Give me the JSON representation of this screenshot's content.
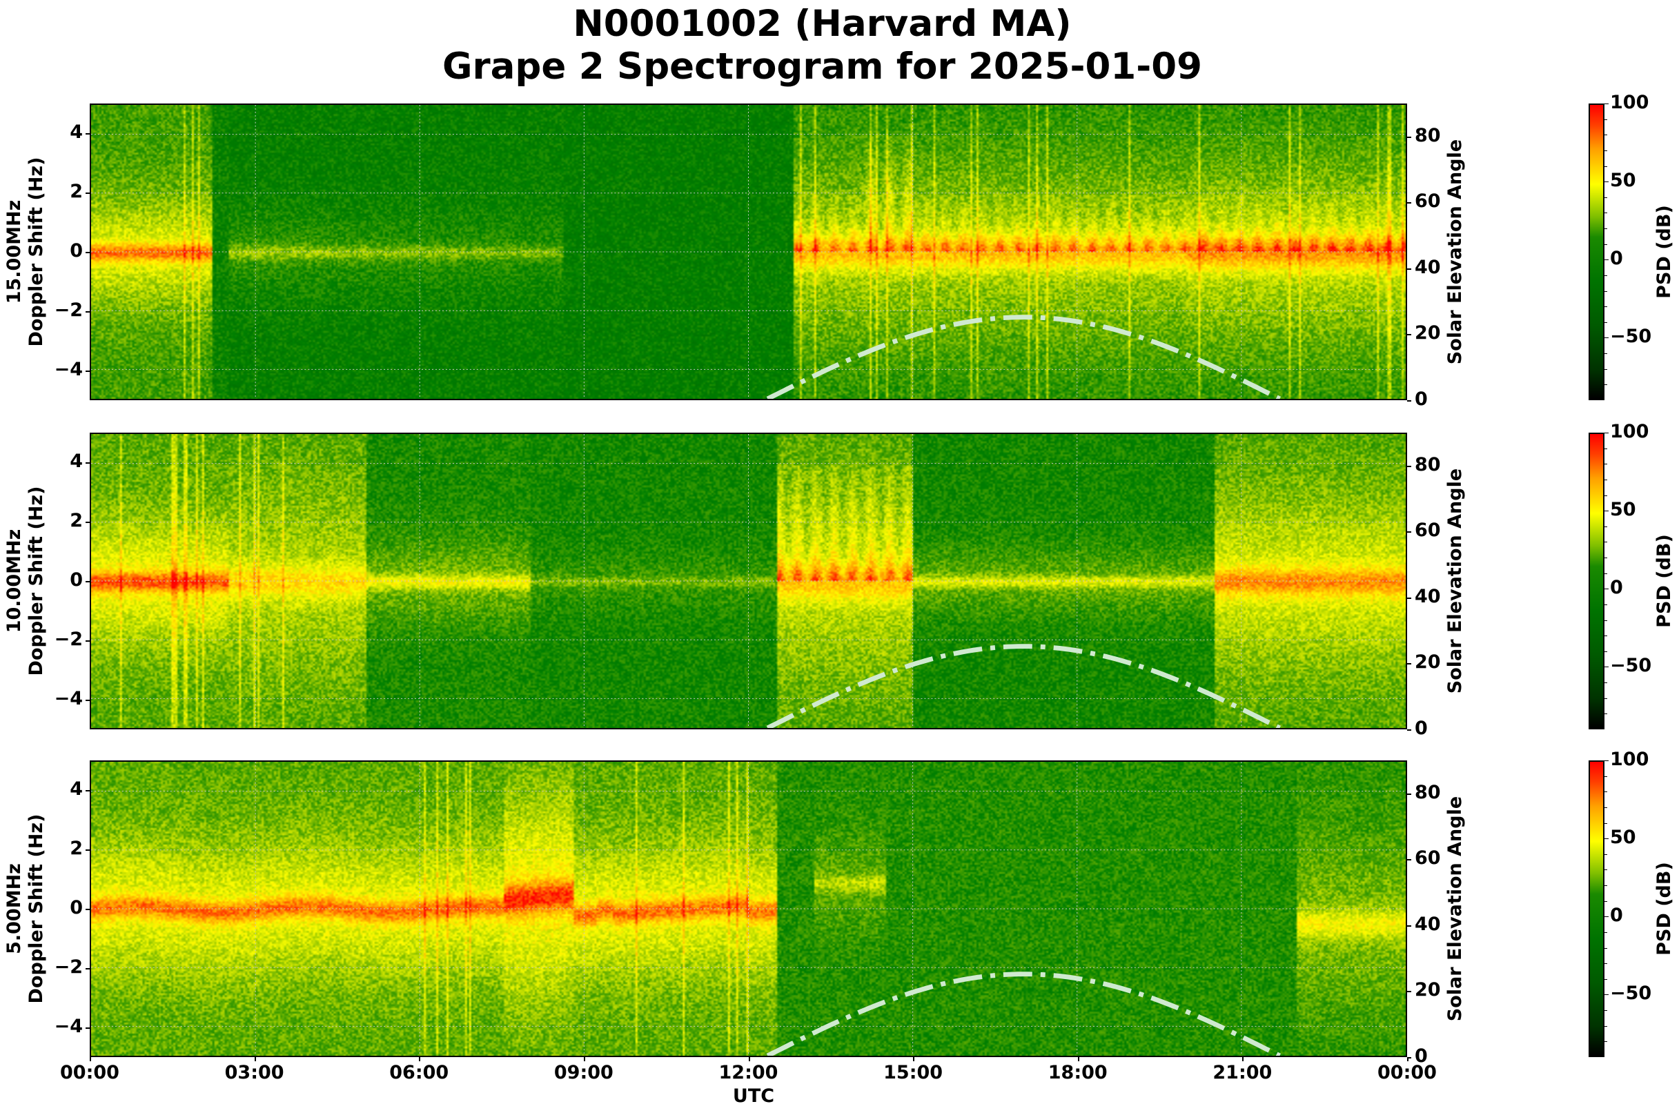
{
  "title": {
    "line1": "N0001002 (Harvard MA)",
    "line2": "Grape 2 Spectrogram for 2025-01-09"
  },
  "xaxis": {
    "label": "UTC",
    "ticks": [
      "00:00",
      "03:00",
      "06:00",
      "09:00",
      "12:00",
      "15:00",
      "18:00",
      "21:00",
      "00:00"
    ]
  },
  "panels": [
    {
      "freq_label": "15.00MHz",
      "ylabel": "Doppler Shift (Hz)",
      "y2label": "Solar Elevation Angle",
      "cbar_label": "PSD (dB)"
    },
    {
      "freq_label": "10.00MHz",
      "ylabel": "Doppler Shift (Hz)",
      "y2label": "Solar Elevation Angle",
      "cbar_label": "PSD (dB)"
    },
    {
      "freq_label": "5.00MHz",
      "ylabel": "Doppler Shift (Hz)",
      "y2label": "Solar Elevation Angle",
      "cbar_label": "PSD (dB)"
    }
  ],
  "yticks_left": [
    "4",
    "2",
    "0",
    "−2",
    "−4"
  ],
  "yticks_right": [
    "80",
    "60",
    "40",
    "20",
    "0"
  ],
  "cbar_ticks": [
    "100",
    "50",
    "0",
    "−50"
  ],
  "colors": {
    "low": "#000000",
    "mid_low": "#006400",
    "mid": "#007a00",
    "high_mid": "#ffff00",
    "high": "#ff0000",
    "solar_curve": "#d0ead0"
  },
  "chart_data": [
    {
      "type": "heatmap",
      "title": "N0001002 (Harvard MA) Grape 2 Spectrogram for 2025-01-09",
      "subplot": "15.00MHz",
      "xlabel": "UTC",
      "ylabel": "15.00MHz Doppler Shift (Hz)",
      "y2label": "Solar Elevation Angle",
      "colorbar_label": "PSD (dB)",
      "xlim": [
        "00:00",
        "24:00"
      ],
      "ylim": [
        -5,
        5
      ],
      "y2lim": [
        0,
        90
      ],
      "clim": [
        -90,
        100
      ],
      "grid": true,
      "description": "Carrier near 0 Hz with strong signal (orange) 00:00-02:10; weak/faded 02:10-12:45 with faint trace 02:30-08:30; strong disturbed spread signal 12:45-24:00 with Doppler excursions up to +4 Hz around 14:30.",
      "solar_elevation": {
        "x_hours": [
          12.35,
          13,
          14,
          15,
          16,
          17,
          18,
          19,
          20,
          21,
          21.7
        ],
        "y_deg": [
          0,
          6.5,
          15,
          21,
          24.5,
          25,
          23.5,
          19.5,
          13.5,
          5.5,
          0
        ]
      }
    },
    {
      "type": "heatmap",
      "subplot": "10.00MHz",
      "xlabel": "UTC",
      "ylabel": "10.00MHz Doppler Shift (Hz)",
      "y2label": "Solar Elevation Angle",
      "colorbar_label": "PSD (dB)",
      "xlim": [
        "00:00",
        "24:00"
      ],
      "ylim": [
        -5,
        5
      ],
      "y2lim": [
        0,
        90
      ],
      "clim": [
        -90,
        100
      ],
      "grid": true,
      "description": "Carrier near 0 Hz continuous all day; strongest (orange) 00:00-03:00 and 22:30-24:00; Doppler excursions up to +4.5 Hz between 13:00-15:00.",
      "solar_elevation": {
        "x_hours": [
          12.35,
          13,
          14,
          15,
          16,
          17,
          18,
          19,
          20,
          21,
          21.7
        ],
        "y_deg": [
          0,
          6.5,
          15,
          21,
          24.5,
          25,
          23.5,
          19.5,
          13.5,
          5.5,
          0
        ]
      }
    },
    {
      "type": "heatmap",
      "subplot": "5.00MHz",
      "xlabel": "UTC",
      "ylabel": "5.00MHz Doppler Shift (Hz)",
      "y2label": "Solar Elevation Angle",
      "colorbar_label": "PSD (dB)",
      "xlim": [
        "00:00",
        "24:00"
      ],
      "ylim": [
        -5,
        5
      ],
      "y2lim": [
        0,
        90
      ],
      "clim": [
        -90,
        100
      ],
      "grid": true,
      "description": "Strong carrier near 0 Hz 00:00-12:30 with orange trace, peaking near +0.5 Hz around 08:30; signal absent 12:30-22:00 (weak patch near +1 Hz 13:15-14:30); returns 22:00-24:00 at about -0.5 Hz.",
      "solar_elevation": {
        "x_hours": [
          12.35,
          13,
          14,
          15,
          16,
          17,
          18,
          19,
          20,
          21,
          21.7
        ],
        "y_deg": [
          0,
          6.5,
          15,
          21,
          24.5,
          25,
          23.5,
          19.5,
          13.5,
          5.5,
          0
        ]
      }
    }
  ]
}
